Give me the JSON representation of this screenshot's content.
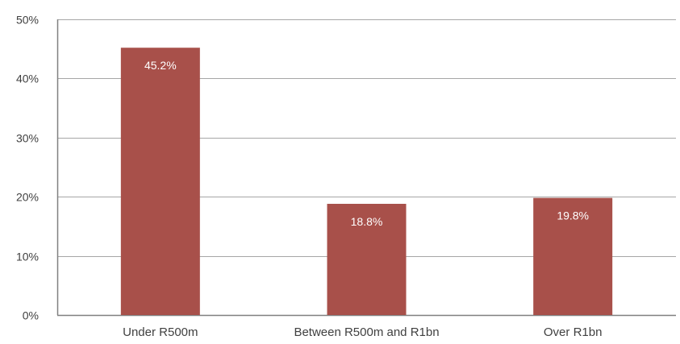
{
  "chart_data": {
    "type": "bar",
    "categories": [
      "Under R500m",
      "Between R500m and R1bn",
      "Over R1bn"
    ],
    "values": [
      45.2,
      18.8,
      19.8
    ],
    "data_labels": [
      "45.2%",
      "18.8%",
      "19.8%"
    ],
    "title": "",
    "xlabel": "",
    "ylabel": "",
    "ylim": [
      0,
      50
    ],
    "yticks": [
      0,
      10,
      20,
      30,
      40,
      50
    ],
    "ytick_labels": [
      "0%",
      "10%",
      "20%",
      "30%",
      "40%",
      "50%"
    ],
    "grid": true,
    "legend": "none",
    "colors": {
      "bar": "#a8504a",
      "grid": "#a6a6a6",
      "axis": "#808080"
    }
  }
}
